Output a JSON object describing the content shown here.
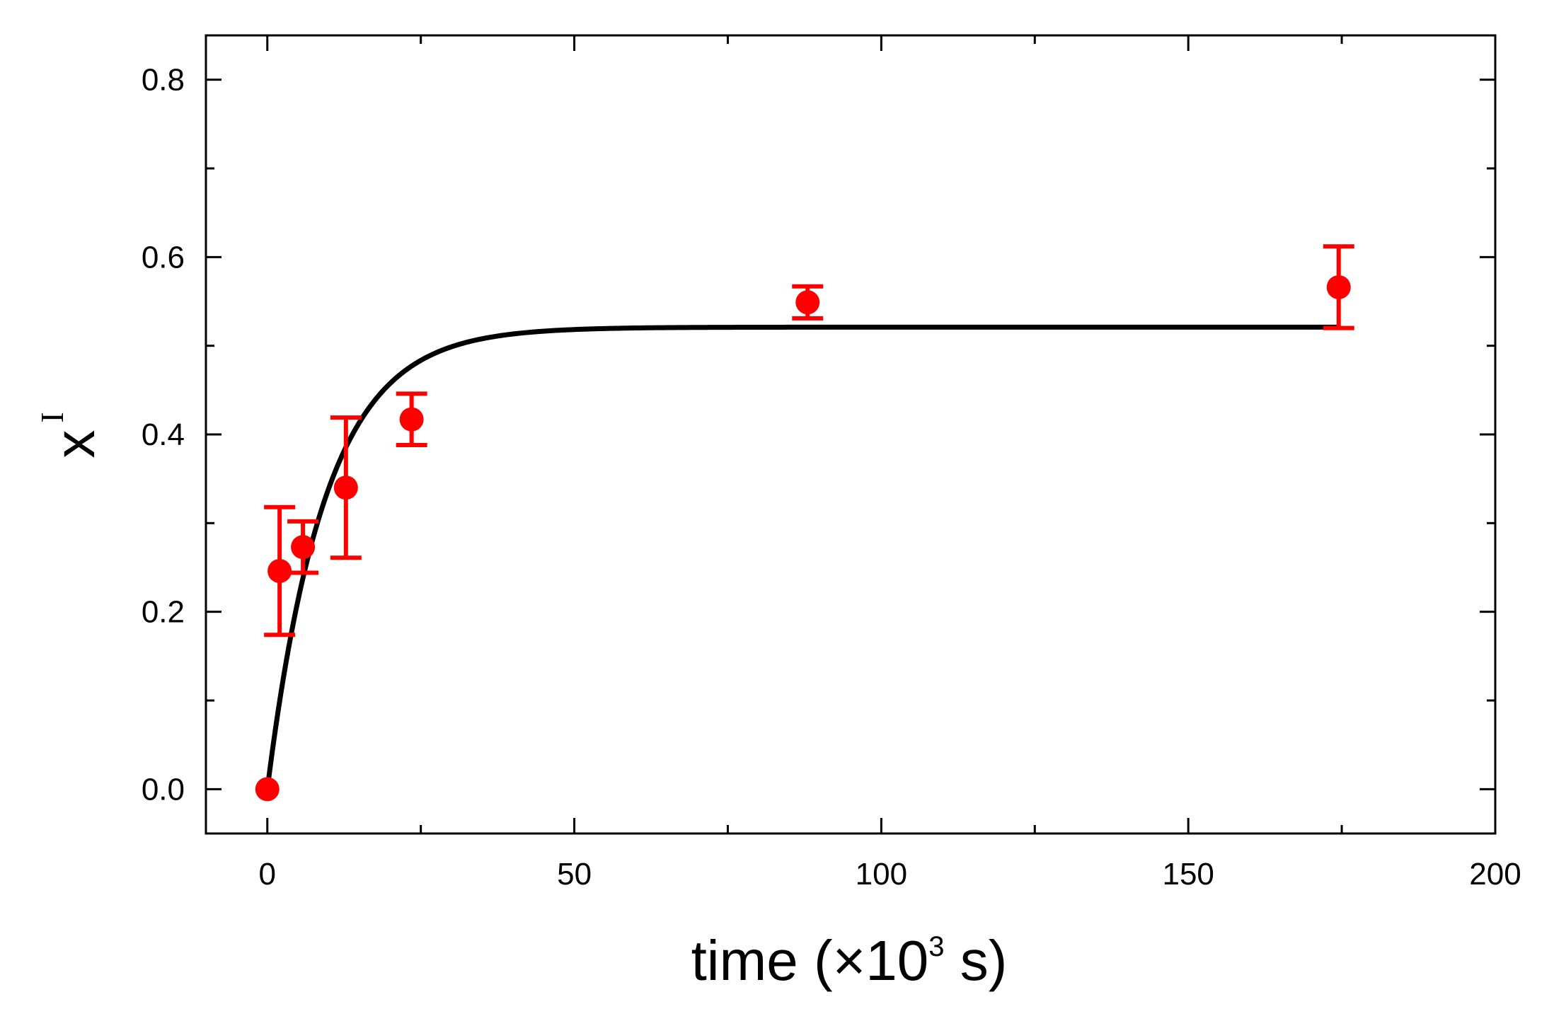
{
  "chart_data": {
    "type": "scatter",
    "xlabel": {
      "main": "time (×10",
      "superscript": "3",
      "suffix": " s)"
    },
    "ylabel": {
      "main": "x",
      "superscript": "I"
    },
    "xlim": [
      -10,
      200
    ],
    "ylim": [
      -0.05,
      0.85
    ],
    "x_ticks": [
      0,
      50,
      100,
      150,
      200
    ],
    "x_tick_labels": [
      "0",
      "50",
      "100",
      "150",
      "200"
    ],
    "x_minor_ticks": [
      25,
      75,
      125,
      175
    ],
    "y_ticks": [
      0.0,
      0.2,
      0.4,
      0.6,
      0.8
    ],
    "y_tick_labels": [
      "0.0",
      "0.2",
      "0.4",
      "0.6",
      "0.8"
    ],
    "y_minor_ticks": [
      0.1,
      0.3,
      0.5,
      0.7
    ],
    "grid": false,
    "series": [
      {
        "kind": "points_with_error_bars",
        "color": "#ff0000",
        "points": [
          {
            "x": 0.0,
            "y": 0.0,
            "err": 0.0
          },
          {
            "x": 2.0,
            "y": 0.246,
            "err": 0.072
          },
          {
            "x": 5.8,
            "y": 0.273,
            "err": 0.029
          },
          {
            "x": 12.8,
            "y": 0.34,
            "err": 0.079
          },
          {
            "x": 23.5,
            "y": 0.417,
            "err": 0.029
          },
          {
            "x": 88.0,
            "y": 0.549,
            "err": 0.018
          },
          {
            "x": 174.5,
            "y": 0.566,
            "err": 0.046
          }
        ]
      },
      {
        "kind": "fit_line",
        "color": "#000000",
        "model": "exponential_saturation",
        "plateau": 0.521,
        "time_constant": 9.5,
        "x_range": [
          0,
          174.5
        ]
      }
    ]
  }
}
